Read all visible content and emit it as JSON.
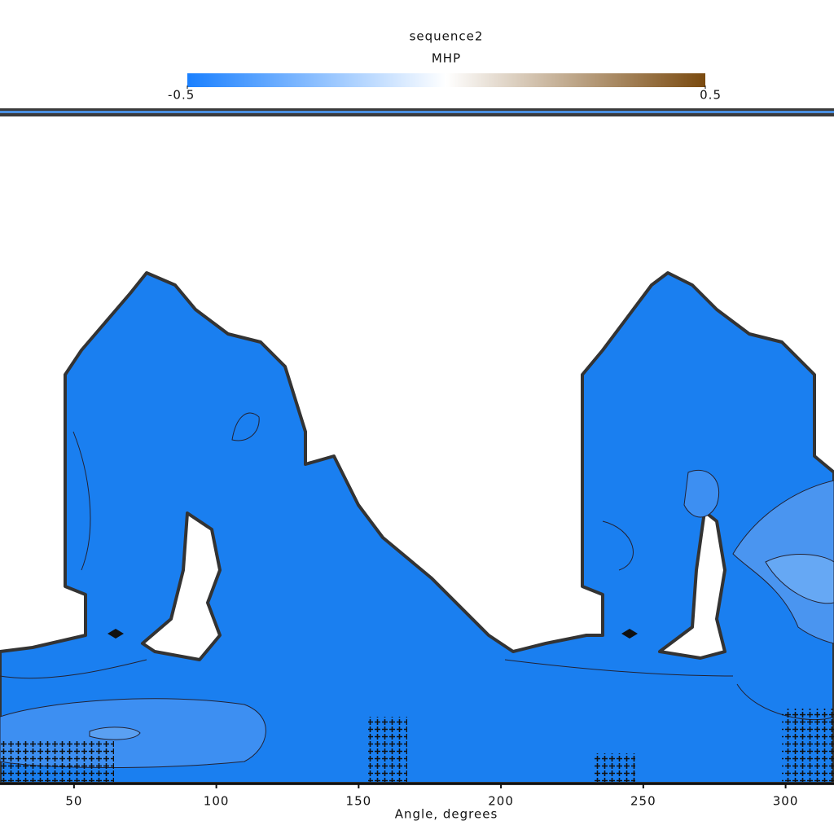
{
  "chart_data": {
    "type": "contour",
    "title": "sequence2",
    "colorbar_label": "MHP",
    "colorbar": {
      "clim": [
        -0.5,
        0.5
      ],
      "ticks": [
        -0.5,
        0.5
      ],
      "colors": [
        "#1a80ff",
        "#ffffff",
        "#7a4a0f"
      ]
    },
    "xlabel": "Angle, degrees",
    "xlim": [
      24,
      317
    ],
    "xticks": [
      50,
      100,
      150,
      200,
      250,
      300
    ]
  }
}
